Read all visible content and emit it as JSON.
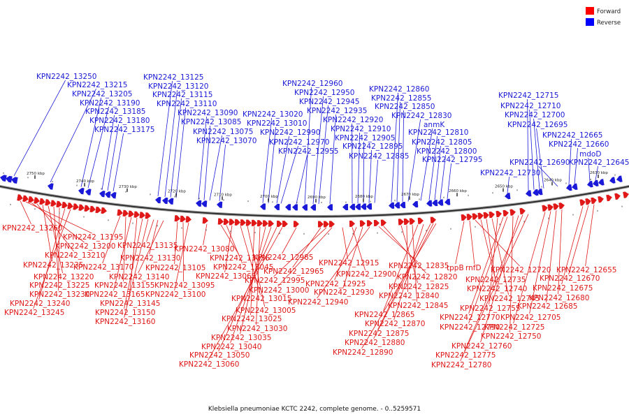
{
  "caption": "Klebsiella pneumoniae KCTC 2242, complete genome. - 0..5259571",
  "legend": [
    {
      "label": "Forward",
      "color": "#ff0000"
    },
    {
      "label": "Reverse",
      "color": "#0000ff"
    }
  ],
  "ticks": [
    "2750 kbp",
    "2740 kbp",
    "2730 kbp",
    "2720 kbp",
    "2710 kbp",
    "2700 kbp",
    "2690 kbp",
    "2680 kbp",
    "2670 kbp",
    "2660 kbp",
    "2650 kbp",
    "2640 kbp",
    "2630 kbp"
  ],
  "reverse_genes": [
    "KPN2242_13250",
    "KPN2242_13215",
    "KPN2242_13205",
    "KPN2242_13190",
    "KPN2242_13185",
    "KPN2242_13180",
    "KPN2242_13175",
    "KPN2242_13125",
    "KPN2242_13120",
    "KPN2242_13115",
    "KPN2242_13110",
    "KPN2242_13090",
    "KPN2242_13085",
    "KPN2242_13075",
    "KPN2242_13070",
    "KPN2242_13020",
    "KPN2242_13010",
    "KPN2242_12990",
    "KPN2242_12970",
    "KPN2242_12960",
    "KPN2242_12950",
    "KPN2242_12945",
    "KPN2242_12935",
    "KPN2242_12955",
    "KPN2242_12920",
    "KPN2242_12910",
    "KPN2242_12905",
    "KPN2242_12895",
    "KPN2242_12885",
    "KPN2242_12860",
    "KPN2242_12855",
    "KPN2242_12850",
    "KPN2242_12830",
    "anmK",
    "KPN2242_12810",
    "KPN2242_12805",
    "KPN2242_12800",
    "KPN2242_12795",
    "KPN2242_12730",
    "KPN2242_12715",
    "KPN2242_12710",
    "KPN2242_12700",
    "KPN2242_12695",
    "KPN2242_12690",
    "KPN2242_12665",
    "KPN2242_12660",
    "mdoD",
    "KPN2242_12645"
  ],
  "forward_genes": [
    "KPN2242_13260",
    "KPN2242_13195",
    "KPN2242_13200",
    "KPN2242_13210",
    "KPN2242_13235",
    "KPN2242_13220",
    "KPN2242_13225",
    "KPN2242_13230",
    "KPN2242_13240",
    "KPN2242_13245",
    "KPN2242_13170",
    "KPN2242_13155",
    "KPN2242_13165",
    "KPN2242_13145",
    "KPN2242_13150",
    "KPN2242_13160",
    "KPN2242_13135",
    "KPN2242_13130",
    "KPN2242_13140",
    "KPN2242_13105",
    "KPN2242_13095",
    "KPN2242_13100",
    "KPN2242_13080",
    "KPN2242_13055",
    "KPN2242_13045",
    "KPN2242_13065",
    "KPN2242_13015",
    "KPN2242_13005",
    "KPN2242_13025",
    "KPN2242_13030",
    "KPN2242_13035",
    "KPN2242_13040",
    "KPN2242_13050",
    "KPN2242_13060",
    "KPN2242_12985",
    "KPN2242_12965",
    "KPN2242_12995",
    "KPN2242_13000",
    "KPN2242_12915",
    "KPN2242_12900",
    "KPN2242_12925",
    "KPN2242_12930",
    "KPN2242_12940",
    "KPN2242_12835",
    "KPN2242_12820",
    "KPN2242_12825",
    "KPN2242_12840",
    "KPN2242_12845",
    "KPN2242_12865",
    "KPN2242_12870",
    "KPN2242_12875",
    "KPN2242_12880",
    "KPN2242_12890",
    "tppB",
    "rnfD",
    "KPN2242_12720",
    "KPN2242_12735",
    "KPN2242_12740",
    "KPN2242_12745",
    "KPN2242_12755",
    "KPN2242_12770",
    "KPN2242_12790",
    "KPN2242_12750",
    "KPN2242_12760",
    "KPN2242_12775",
    "KPN2242_12780",
    "KPN2242_12725",
    "KPN2242_12705",
    "KPN2242_12685",
    "KPN2242_12680",
    "KPN2242_12675",
    "KPN2242_12670",
    "KPN2242_12655"
  ]
}
